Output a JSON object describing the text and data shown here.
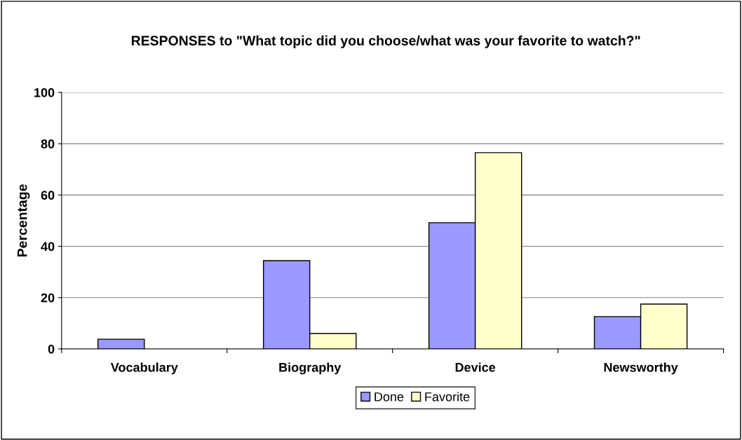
{
  "chart_data": {
    "type": "bar",
    "title": "RESPONSES to \"What topic did you choose/what was your favorite to watch?\"",
    "ylabel": "Percentage",
    "categories": [
      "Vocabulary",
      "Biography",
      "Device",
      "Newsworthy"
    ],
    "series": [
      {
        "name": "Done",
        "color": "#9999ff",
        "values": [
          3.8,
          34.4,
          49.2,
          12.6
        ]
      },
      {
        "name": "Favorite",
        "color": "#ffffcc",
        "values": [
          null,
          6.0,
          76.5,
          17.5
        ]
      }
    ],
    "ylim": [
      0,
      100
    ],
    "yticks": [
      0,
      20,
      40,
      60,
      80,
      100
    ],
    "grid": "y",
    "legend": "bottom"
  }
}
